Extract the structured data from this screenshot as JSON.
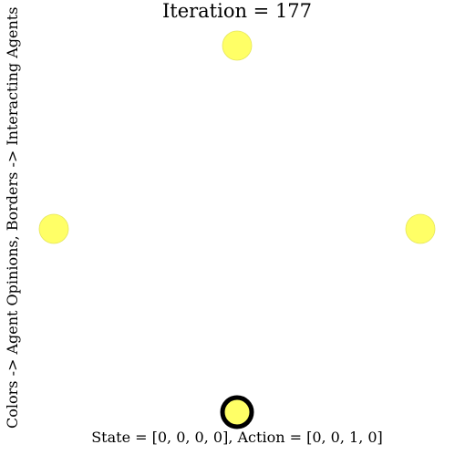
{
  "title": "Iteration = 177",
  "xlabel": "State = [0, 0, 0, 0], Action = [0, 0, 1, 0]",
  "ylabel": "Colors -> Agent Opinions, Borders -> Interacting Agents",
  "colors": {
    "agent_fill": "#ffff66",
    "agent_edge": "#e6e65c",
    "interacting_border": "#000000",
    "background": "#ffffff"
  },
  "agents": [
    {
      "id": "top",
      "opinion": 0,
      "interacting": false
    },
    {
      "id": "left",
      "opinion": 0,
      "interacting": false
    },
    {
      "id": "right",
      "opinion": 0,
      "interacting": false
    },
    {
      "id": "bottom",
      "opinion": 0,
      "interacting": true
    }
  ]
}
